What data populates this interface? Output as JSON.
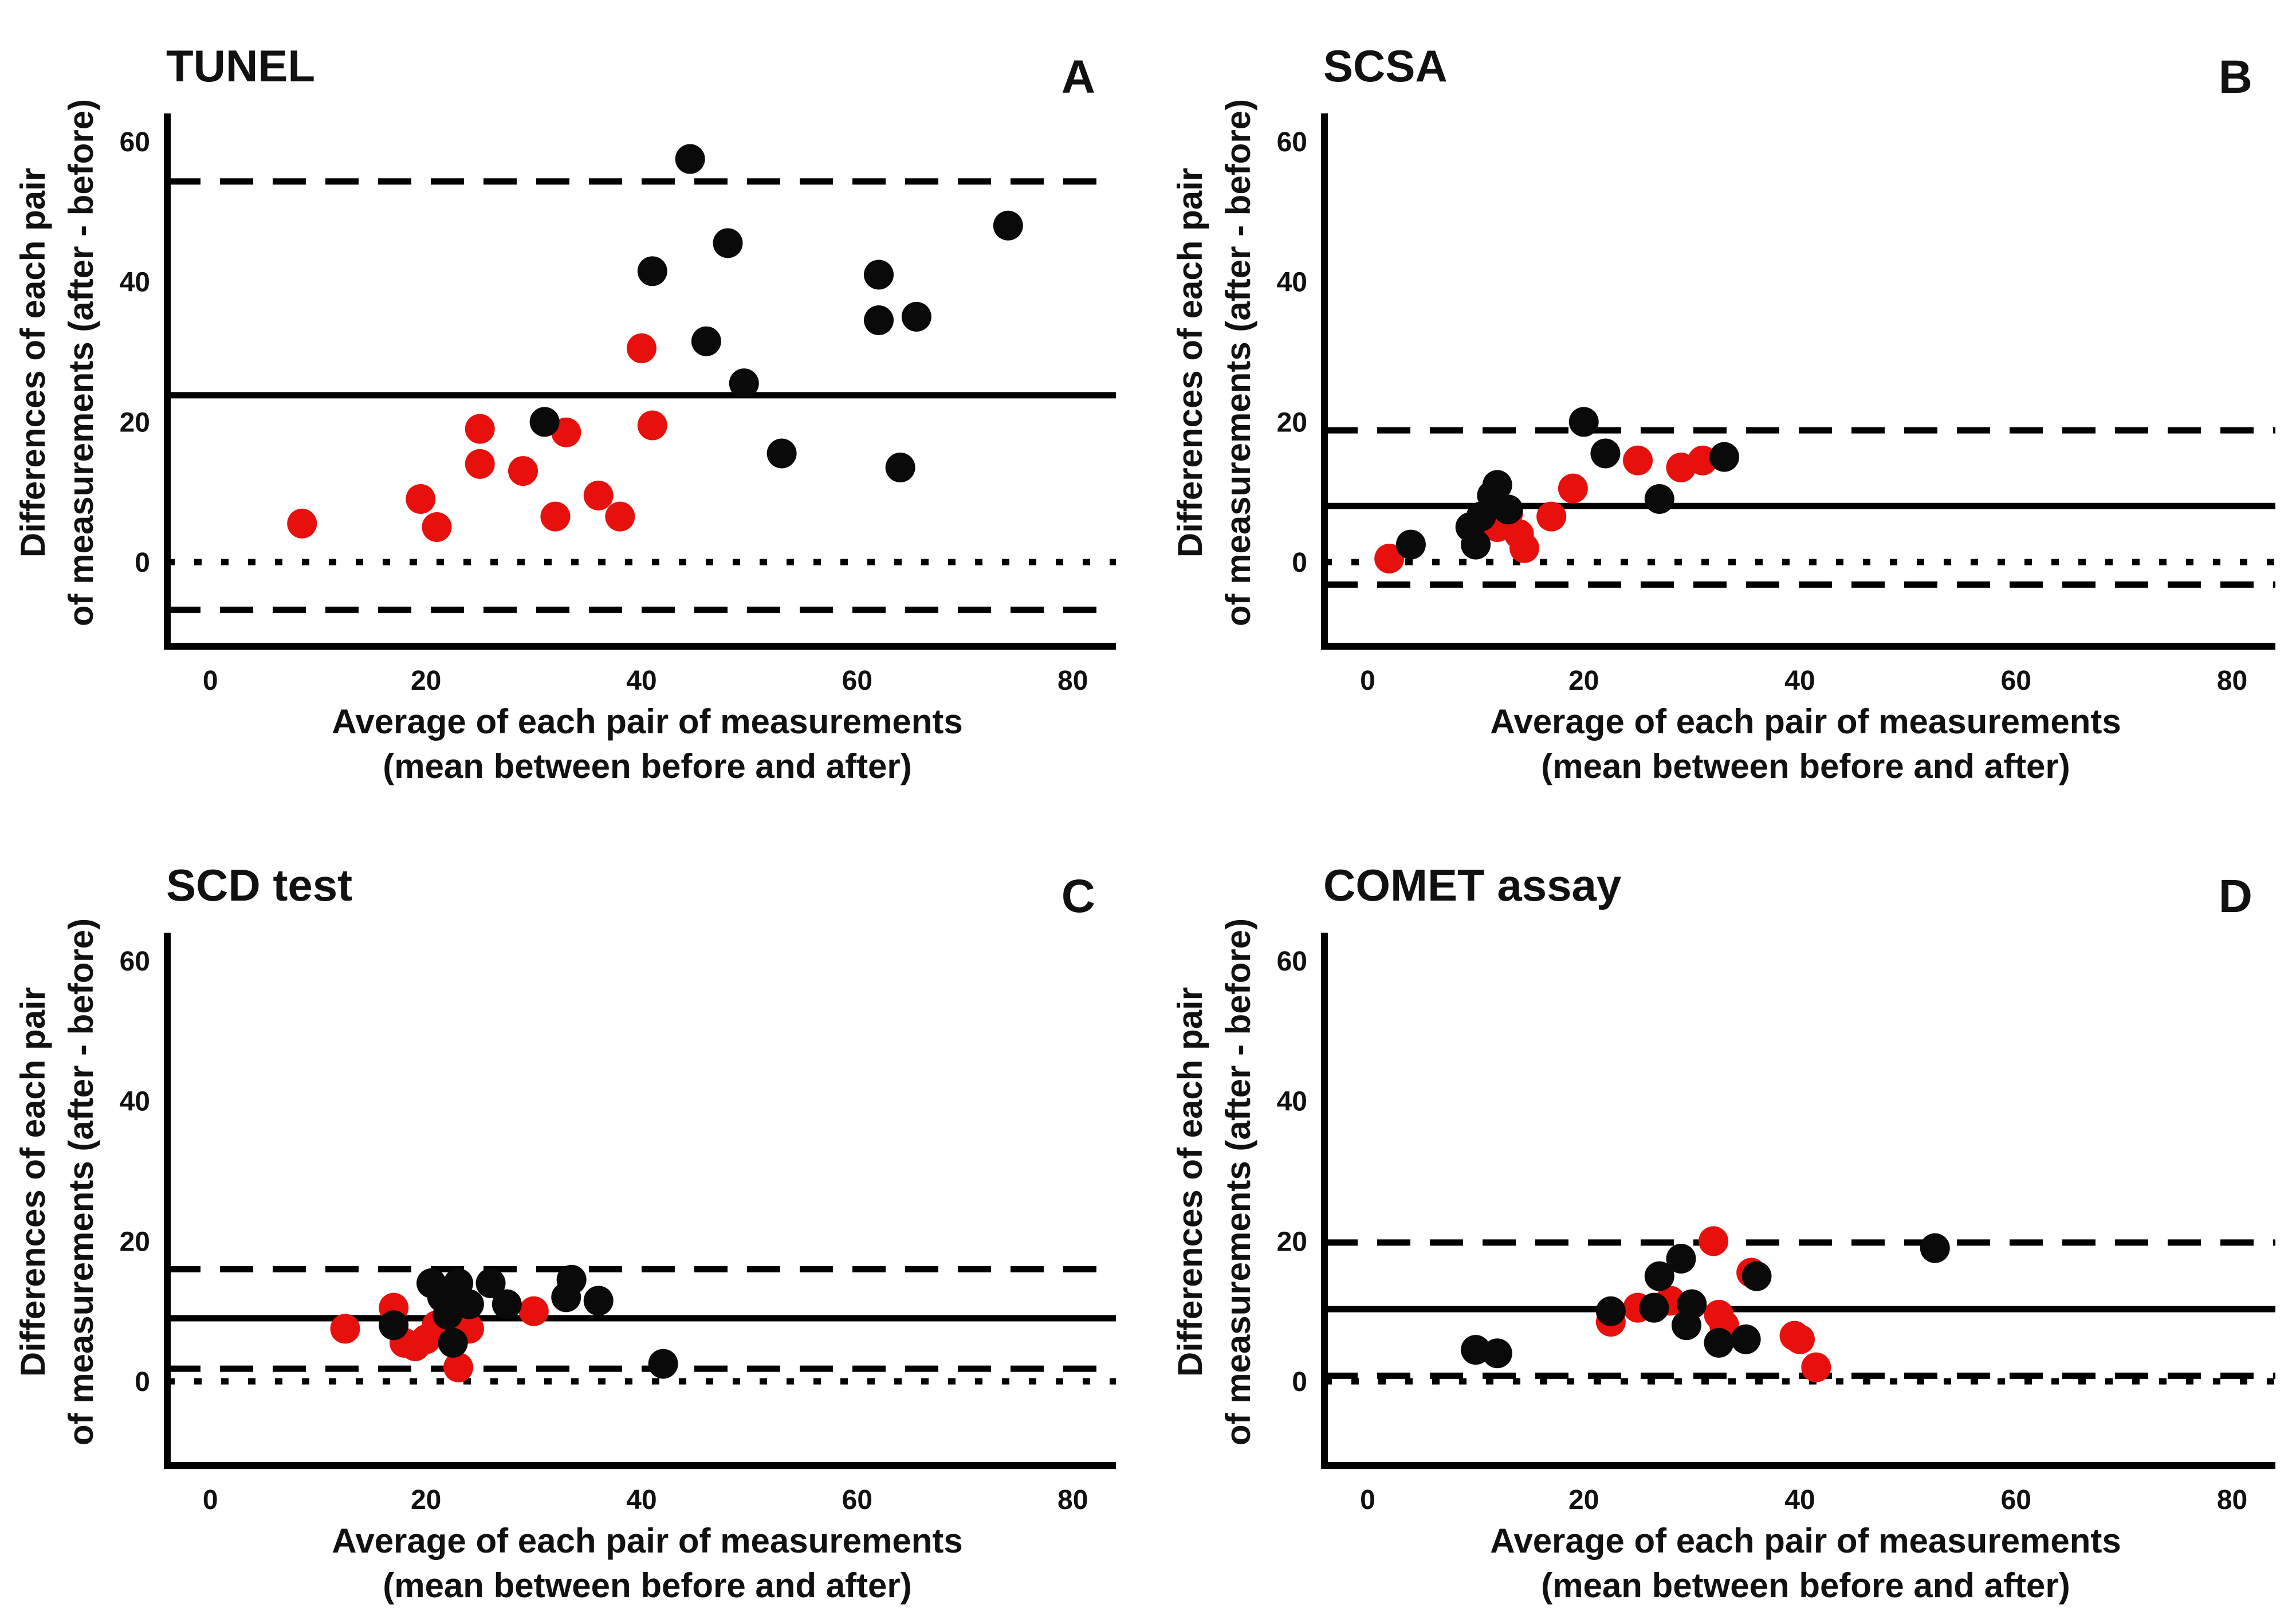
{
  "figure": {
    "colors": {
      "red": "#e8100c",
      "black": "#0a0a0a"
    }
  },
  "chart_data": [
    {
      "type": "scatter",
      "title": "TUNEL",
      "panel_letter": "A",
      "xlabel": [
        "Average of each pair of measurements",
        "(mean between before and after)"
      ],
      "ylabel": [
        "Differences of each pair",
        "of measurements (after - before)"
      ],
      "xlim": [
        -4,
        84
      ],
      "ylim": [
        -12,
        64
      ],
      "xticks": [
        "0",
        "20",
        "40",
        "60",
        "80"
      ],
      "yticks": [
        "0",
        "20",
        "40",
        "60"
      ],
      "mean_line": 23.8,
      "upper_limit": 54.3,
      "lower_limit": -6.8,
      "zero_line": 0,
      "series": [
        {
          "name": "red",
          "color": "#e8100c",
          "points": [
            [
              8.5,
              5.5
            ],
            [
              19.5,
              9
            ],
            [
              21,
              5
            ],
            [
              25,
              19
            ],
            [
              25,
              14
            ],
            [
              29,
              13
            ],
            [
              32,
              6.5
            ],
            [
              33,
              18.5
            ],
            [
              36,
              9.5
            ],
            [
              38,
              6.5
            ],
            [
              40,
              30.5
            ],
            [
              41,
              19.5
            ]
          ]
        },
        {
          "name": "black",
          "color": "#0a0a0a",
          "points": [
            [
              31,
              20
            ],
            [
              41,
              41.5
            ],
            [
              44.5,
              57.5
            ],
            [
              46,
              31.5
            ],
            [
              48,
              45.5
            ],
            [
              49.5,
              25.5
            ],
            [
              53,
              15.5
            ],
            [
              62,
              41
            ],
            [
              62,
              34.5
            ],
            [
              64,
              13.5
            ],
            [
              65.5,
              35
            ],
            [
              74,
              48
            ]
          ]
        }
      ]
    },
    {
      "type": "scatter",
      "title": "SCSA",
      "panel_letter": "B",
      "xlabel": [
        "Average of each pair of measurements",
        "(mean between before and after)"
      ],
      "ylabel": [
        "Differences of each pair",
        "of measurements (after - before)"
      ],
      "xlim": [
        -4,
        84
      ],
      "ylim": [
        -12,
        64
      ],
      "xticks": [
        "0",
        "20",
        "40",
        "60",
        "80"
      ],
      "yticks": [
        "0",
        "20",
        "40",
        "60"
      ],
      "mean_line": 8,
      "upper_limit": 18.8,
      "lower_limit": -3.2,
      "zero_line": 0,
      "series": [
        {
          "name": "red",
          "color": "#e8100c",
          "points": [
            [
              2,
              0.5
            ],
            [
              12,
              5
            ],
            [
              13,
              7
            ],
            [
              14,
              4
            ],
            [
              14.5,
              2
            ],
            [
              17,
              6.5
            ],
            [
              19,
              10.5
            ],
            [
              25,
              14.5
            ],
            [
              29,
              13.5
            ],
            [
              31,
              14.5
            ]
          ]
        },
        {
          "name": "black",
          "color": "#0a0a0a",
          "points": [
            [
              4,
              2.5
            ],
            [
              9.5,
              5
            ],
            [
              10,
              2.5
            ],
            [
              10.5,
              6.5
            ],
            [
              11.5,
              9.5
            ],
            [
              12,
              11
            ],
            [
              13,
              7.5
            ],
            [
              20,
              20
            ],
            [
              22,
              15.5
            ],
            [
              27,
              9
            ],
            [
              33,
              15
            ]
          ]
        }
      ]
    },
    {
      "type": "scatter",
      "title": "SCD test",
      "panel_letter": "C",
      "xlabel": [
        "Average of each pair of measurements",
        "(mean between before and after)"
      ],
      "ylabel": [
        "Differences of each pair",
        "of measurements (after - before)"
      ],
      "xlim": [
        -4,
        84
      ],
      "ylim": [
        -12,
        64
      ],
      "xticks": [
        "0",
        "20",
        "40",
        "60",
        "80"
      ],
      "yticks": [
        "0",
        "20",
        "40",
        "60"
      ],
      "mean_line": 9,
      "upper_limit": 16,
      "lower_limit": 1.8,
      "zero_line": 0,
      "series": [
        {
          "name": "red",
          "color": "#e8100c",
          "points": [
            [
              12.5,
              7.5
            ],
            [
              17,
              10.5
            ],
            [
              18,
              5.5
            ],
            [
              19,
              5
            ],
            [
              20,
              6
            ],
            [
              21,
              8
            ],
            [
              22,
              6.5
            ],
            [
              23,
              2
            ],
            [
              24,
              7.5
            ],
            [
              30,
              10
            ]
          ]
        },
        {
          "name": "black",
          "color": "#0a0a0a",
          "points": [
            [
              17,
              8
            ],
            [
              20.5,
              14
            ],
            [
              21.5,
              12
            ],
            [
              22,
              9.5
            ],
            [
              22.5,
              5.5
            ],
            [
              23,
              14
            ],
            [
              24,
              11
            ],
            [
              26,
              14
            ],
            [
              27.5,
              11
            ],
            [
              33,
              12
            ],
            [
              33.5,
              14.5
            ],
            [
              36,
              11.5
            ],
            [
              42,
              2.5
            ]
          ]
        }
      ]
    },
    {
      "type": "scatter",
      "title": "COMET assay",
      "panel_letter": "D",
      "xlabel": [
        "Average of each pair of measurements",
        "(mean between before and after)"
      ],
      "ylabel": [
        "Differences of each pair",
        "of measurements (after - before)"
      ],
      "xlim": [
        -4,
        84
      ],
      "ylim": [
        -12,
        64
      ],
      "xticks": [
        "0",
        "20",
        "40",
        "60",
        "80"
      ],
      "yticks": [
        "0",
        "20",
        "40",
        "60"
      ],
      "mean_line": 10.3,
      "upper_limit": 19.8,
      "lower_limit": 0.8,
      "zero_line": 0,
      "series": [
        {
          "name": "red",
          "color": "#e8100c",
          "points": [
            [
              22.5,
              8.5
            ],
            [
              25,
              10.5
            ],
            [
              28,
              11.5
            ],
            [
              32,
              20
            ],
            [
              32.5,
              9.5
            ],
            [
              33,
              8
            ],
            [
              35.5,
              15.5
            ],
            [
              39.5,
              6.5
            ],
            [
              40,
              6
            ],
            [
              41.5,
              2
            ]
          ]
        },
        {
          "name": "black",
          "color": "#0a0a0a",
          "points": [
            [
              10,
              4.5
            ],
            [
              12,
              4
            ],
            [
              22.5,
              10
            ],
            [
              26.5,
              10.5
            ],
            [
              27,
              15
            ],
            [
              29,
              17.5
            ],
            [
              29.5,
              8
            ],
            [
              30,
              11
            ],
            [
              32.5,
              5.5
            ],
            [
              35,
              6
            ],
            [
              36,
              15
            ],
            [
              52.5,
              19
            ]
          ]
        }
      ]
    }
  ]
}
